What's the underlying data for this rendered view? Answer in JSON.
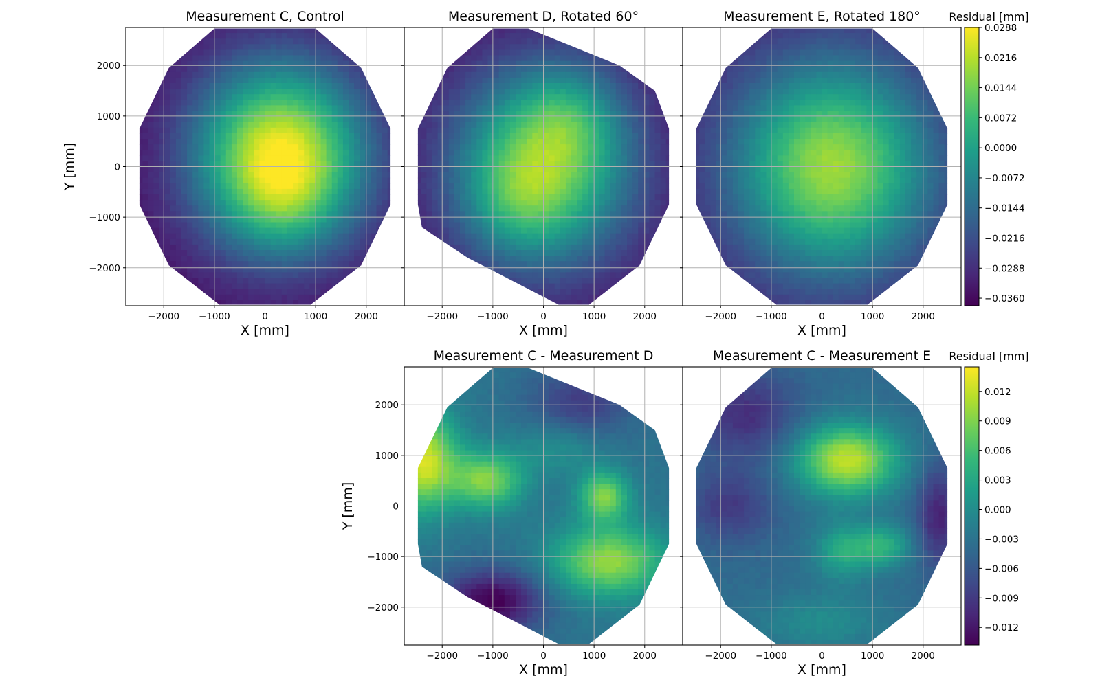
{
  "figure": {
    "colormap": "viridis",
    "colormap_stops": [
      "#440154",
      "#482878",
      "#3e4a89",
      "#31688e",
      "#26828e",
      "#1f9e89",
      "#35b779",
      "#6ece58",
      "#b5de2b",
      "#fde725"
    ],
    "axis_line_color": "#000000",
    "grid_color": "#b0b0b0"
  },
  "colorbars": [
    {
      "title": "Residual [mm]",
      "min": -0.0378,
      "max": 0.0288,
      "ticks": [
        "0.0288",
        "0.0216",
        "0.0144",
        "0.0072",
        "0.0000",
        "−0.0072",
        "−0.0144",
        "−0.0216",
        "−0.0288",
        "−0.0360"
      ]
    },
    {
      "title": "Residual [mm]",
      "min": -0.0138,
      "max": 0.0145,
      "ticks": [
        "0.012",
        "0.009",
        "0.006",
        "0.003",
        "0.000",
        "−0.003",
        "−0.006",
        "−0.009",
        "−0.012"
      ]
    }
  ],
  "chart_data": [
    {
      "type": "heatmap",
      "title": "Measurement C, Control",
      "xlabel": "X [mm]",
      "ylabel": "Y [mm]",
      "xlim": [
        -2750,
        2750
      ],
      "ylim": [
        -2750,
        2750
      ],
      "xticks": [
        "−2000",
        "−1000",
        "0",
        "1000",
        "2000"
      ],
      "yticks": [
        "2000",
        "1000",
        "0",
        "−1000",
        "−2000"
      ],
      "grid": true,
      "colorbar": 0,
      "outline": [
        [
          -1000,
          2730
        ],
        [
          1000,
          2730
        ],
        [
          1900,
          1950
        ],
        [
          2480,
          750
        ],
        [
          2480,
          -750
        ],
        [
          1900,
          -1950
        ],
        [
          900,
          -2730
        ],
        [
          -900,
          -2730
        ],
        [
          -1900,
          -1950
        ],
        [
          -2480,
          -750
        ],
        [
          -2480,
          750
        ],
        [
          -1900,
          1950
        ]
      ],
      "field": {
        "base": -0.036,
        "peaks": [
          {
            "x": 300,
            "y": 200,
            "sx": 1200,
            "sy": 1300,
            "a": 0.064
          },
          {
            "x": 400,
            "y": -700,
            "sx": 700,
            "sy": 700,
            "a": 0.008
          }
        ]
      }
    },
    {
      "type": "heatmap",
      "title": "Measurement D, Rotated 60°",
      "xlabel": "X [mm]",
      "ylabel": "",
      "xlim": [
        -2750,
        2750
      ],
      "ylim": [
        -2750,
        2750
      ],
      "xticks": [
        "−2000",
        "−1000",
        "0",
        "1000",
        "2000"
      ],
      "yticks": [],
      "grid": true,
      "colorbar": 0,
      "outline": [
        [
          -1000,
          2730
        ],
        [
          -300,
          2730
        ],
        [
          1500,
          2000
        ],
        [
          2200,
          1500
        ],
        [
          2480,
          750
        ],
        [
          2480,
          -750
        ],
        [
          1900,
          -1950
        ],
        [
          900,
          -2730
        ],
        [
          300,
          -2730
        ],
        [
          -1500,
          -1800
        ],
        [
          -2400,
          -1200
        ],
        [
          -2480,
          -750
        ],
        [
          -2480,
          750
        ],
        [
          -1900,
          1950
        ]
      ],
      "field": {
        "base": -0.036,
        "peaks": [
          {
            "x": 0,
            "y": 0,
            "sx": 1300,
            "sy": 1400,
            "a": 0.05
          },
          {
            "x": 500,
            "y": 1000,
            "sx": 700,
            "sy": 700,
            "a": 0.012
          },
          {
            "x": -500,
            "y": -700,
            "sx": 700,
            "sy": 700,
            "a": 0.01
          }
        ]
      }
    },
    {
      "type": "heatmap",
      "title": "Measurement E, Rotated 180°",
      "xlabel": "X [mm]",
      "ylabel": "",
      "xlim": [
        -2750,
        2750
      ],
      "ylim": [
        -2750,
        2750
      ],
      "xticks": [
        "−2000",
        "−1000",
        "0",
        "1000",
        "2000"
      ],
      "yticks": [],
      "grid": true,
      "colorbar": 0,
      "outline": [
        [
          -1000,
          2730
        ],
        [
          1000,
          2730
        ],
        [
          1900,
          1950
        ],
        [
          2480,
          750
        ],
        [
          2480,
          -750
        ],
        [
          1900,
          -1950
        ],
        [
          900,
          -2730
        ],
        [
          -900,
          -2730
        ],
        [
          -1900,
          -1950
        ],
        [
          -2480,
          -750
        ],
        [
          -2480,
          750
        ],
        [
          -1900,
          1950
        ]
      ],
      "field": {
        "base": -0.033,
        "peaks": [
          {
            "x": 200,
            "y": 0,
            "sx": 1400,
            "sy": 1500,
            "a": 0.052
          }
        ]
      }
    },
    {
      "type": "heatmap",
      "title": "Measurement C - Measurement D",
      "xlabel": "X [mm]",
      "ylabel": "Y [mm]",
      "xlim": [
        -2750,
        2750
      ],
      "ylim": [
        -2750,
        2750
      ],
      "xticks": [
        "−2000",
        "−1000",
        "0",
        "1000",
        "2000"
      ],
      "yticks": [
        "2000",
        "1000",
        "0",
        "−1000",
        "−2000"
      ],
      "grid": true,
      "colorbar": 1,
      "outline": [
        [
          -1000,
          2730
        ],
        [
          -300,
          2730
        ],
        [
          1500,
          2000
        ],
        [
          2200,
          1500
        ],
        [
          2480,
          750
        ],
        [
          2480,
          -750
        ],
        [
          1900,
          -1950
        ],
        [
          900,
          -2730
        ],
        [
          300,
          -2730
        ],
        [
          -1500,
          -1800
        ],
        [
          -2400,
          -1200
        ],
        [
          -2480,
          -750
        ],
        [
          -2480,
          750
        ],
        [
          -1900,
          1950
        ]
      ],
      "field": {
        "base": -0.003,
        "peaks": [
          {
            "x": -2400,
            "y": 900,
            "sx": 500,
            "sy": 700,
            "a": 0.016
          },
          {
            "x": -1100,
            "y": 500,
            "sx": 500,
            "sy": 400,
            "a": 0.012
          },
          {
            "x": 1200,
            "y": 200,
            "sx": 350,
            "sy": 350,
            "a": 0.012
          },
          {
            "x": 1300,
            "y": -1100,
            "sx": 800,
            "sy": 500,
            "a": 0.013
          },
          {
            "x": -1000,
            "y": -1900,
            "sx": 700,
            "sy": 450,
            "a": -0.011
          },
          {
            "x": 700,
            "y": 2000,
            "sx": 700,
            "sy": 500,
            "a": -0.006
          },
          {
            "x": 300,
            "y": 1200,
            "sx": 600,
            "sy": 400,
            "a": 0.004
          }
        ]
      }
    },
    {
      "type": "heatmap",
      "title": "Measurement C - Measurement E",
      "xlabel": "X [mm]",
      "ylabel": "",
      "xlim": [
        -2750,
        2750
      ],
      "ylim": [
        -2750,
        2750
      ],
      "xticks": [
        "−2000",
        "−1000",
        "0",
        "1000",
        "2000"
      ],
      "yticks": [],
      "grid": true,
      "colorbar": 1,
      "outline": [
        [
          -1000,
          2730
        ],
        [
          1000,
          2730
        ],
        [
          1900,
          1950
        ],
        [
          2480,
          750
        ],
        [
          2480,
          -750
        ],
        [
          1900,
          -1950
        ],
        [
          900,
          -2730
        ],
        [
          -900,
          -2730
        ],
        [
          -1900,
          -1950
        ],
        [
          -2480,
          -750
        ],
        [
          -2480,
          750
        ],
        [
          -1900,
          1950
        ]
      ],
      "field": {
        "base": -0.004,
        "peaks": [
          {
            "x": 500,
            "y": 900,
            "sx": 700,
            "sy": 500,
            "a": 0.016
          },
          {
            "x": 1200,
            "y": -800,
            "sx": 400,
            "sy": 300,
            "a": 0.008
          },
          {
            "x": 400,
            "y": -900,
            "sx": 400,
            "sy": 400,
            "a": 0.007
          },
          {
            "x": -1500,
            "y": 1800,
            "sx": 700,
            "sy": 600,
            "a": -0.006
          },
          {
            "x": -1800,
            "y": 0,
            "sx": 600,
            "sy": 500,
            "a": -0.005
          },
          {
            "x": 2300,
            "y": -200,
            "sx": 300,
            "sy": 700,
            "a": -0.007
          },
          {
            "x": 0,
            "y": -2300,
            "sx": 900,
            "sy": 400,
            "a": 0.004
          }
        ]
      }
    }
  ]
}
